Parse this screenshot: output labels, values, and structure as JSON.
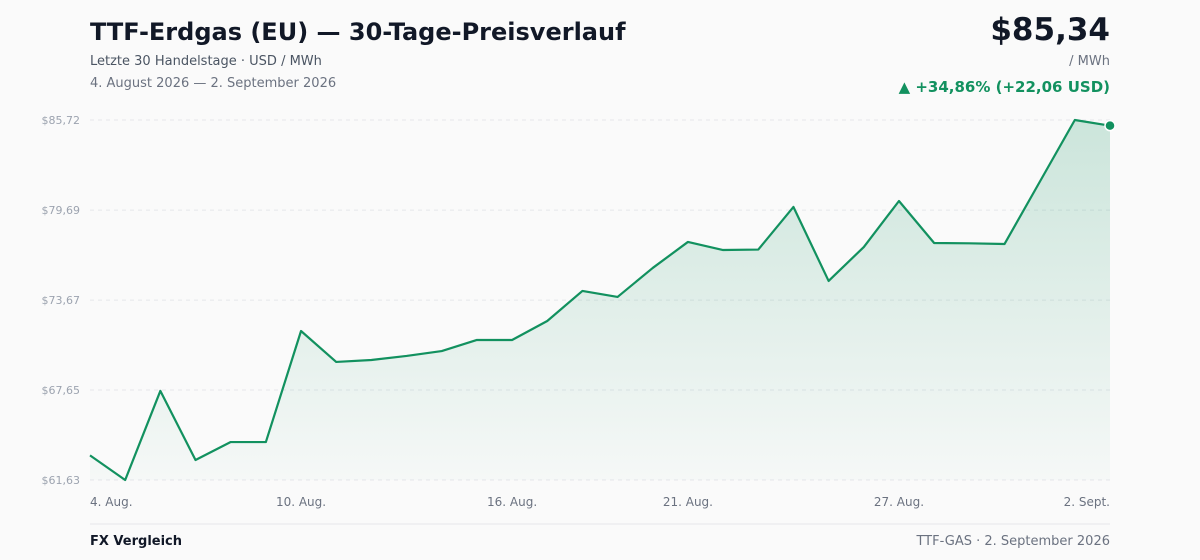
{
  "header": {
    "title": "TTF-Erdgas (EU) — 30-Tage-Preisverlauf",
    "subtitle": "Letzte 30 Handelstage · USD / MWh",
    "date_range": "4. August 2026 — 2. September 2026",
    "price": "$85,34",
    "unit": "/ MWh",
    "change": "▲ +34,86% (+22,06 USD)"
  },
  "chart_data": {
    "type": "area",
    "color": "#12915f",
    "grid": true,
    "categories": [
      "4. Aug.",
      null,
      null,
      null,
      null,
      null,
      "10. Aug.",
      null,
      null,
      null,
      null,
      null,
      "16. Aug.",
      null,
      null,
      null,
      null,
      "21. Aug.",
      null,
      null,
      null,
      null,
      null,
      "27. Aug.",
      null,
      null,
      null,
      null,
      null,
      "2. Sept."
    ],
    "values": [
      63.28,
      61.63,
      67.59,
      62.97,
      64.17,
      64.17,
      71.6,
      69.53,
      69.66,
      69.93,
      70.26,
      71.0,
      71.0,
      72.27,
      74.28,
      73.88,
      75.82,
      77.56,
      77.02,
      77.05,
      79.9,
      74.95,
      77.22,
      80.3,
      77.49,
      77.47,
      77.42,
      81.57,
      85.72,
      85.34
    ],
    "ylim": [
      61.63,
      85.72
    ],
    "yticks": [
      {
        "value": 61.63,
        "label": "$61,63"
      },
      {
        "value": 67.65,
        "label": "$67,65"
      },
      {
        "value": 73.67,
        "label": "$73,67"
      },
      {
        "value": 79.69,
        "label": "$79,69"
      },
      {
        "value": 85.72,
        "label": "$85,72"
      }
    ]
  },
  "footer": {
    "left": "FX Vergleich",
    "right": "TTF-GAS · 2. September 2026"
  }
}
